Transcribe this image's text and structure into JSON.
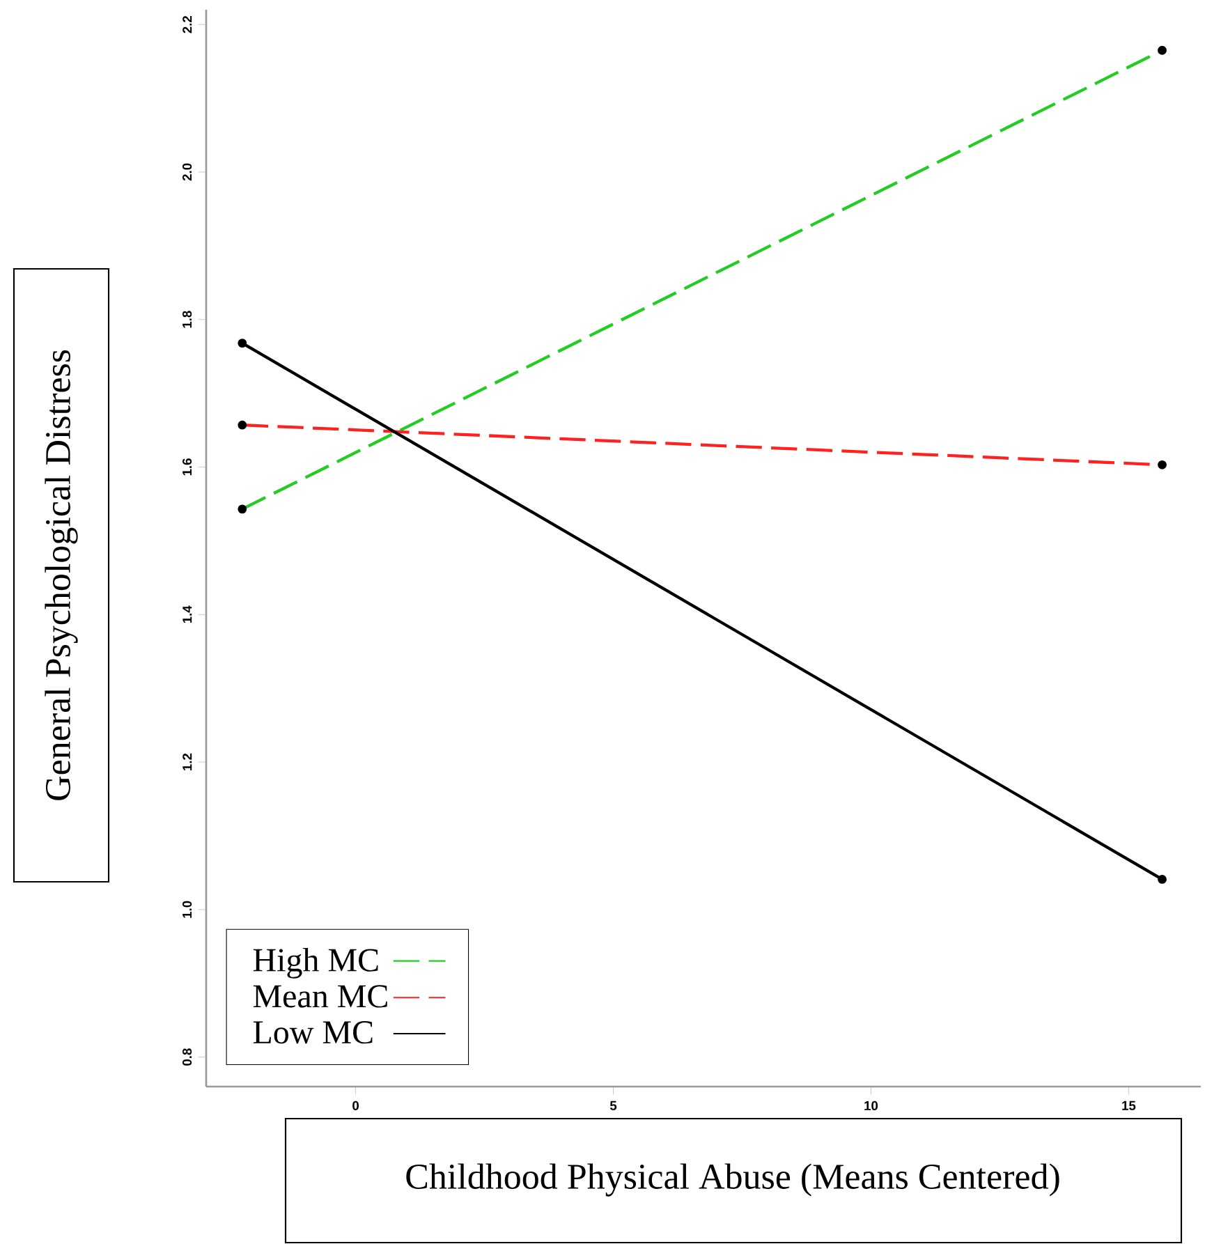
{
  "chart_data": {
    "type": "line",
    "xlabel": "Childhood Physical Abuse (Means Centered)",
    "ylabel": "General Psychological Distress",
    "xlim": [
      -2.9,
      16.4
    ],
    "ylim": [
      0.76,
      2.22
    ],
    "xticks": [
      0,
      5,
      10,
      15
    ],
    "yticks": [
      0.8,
      {
        "value": 1.0,
        "label": "1.0"
      },
      1.2,
      1.4,
      1.6,
      1.8,
      {
        "value": 2.0,
        "label": "2.0"
      },
      2.2
    ],
    "legend": "bottom left",
    "marker": "circle",
    "grid": false,
    "x": [
      -2.2,
      15.65
    ],
    "series": [
      {
        "name": "High MC",
        "color": "#22cc22",
        "values": [
          1.543,
          2.165
        ],
        "line_style": "dashed"
      },
      {
        "name": "Mean MC",
        "color": "#ff2020",
        "values": [
          1.657,
          1.603
        ],
        "line_style": "dashed"
      },
      {
        "name": "Low MC",
        "color": "#000000",
        "values": [
          1.768,
          1.041
        ],
        "line_style": "solid"
      }
    ]
  }
}
